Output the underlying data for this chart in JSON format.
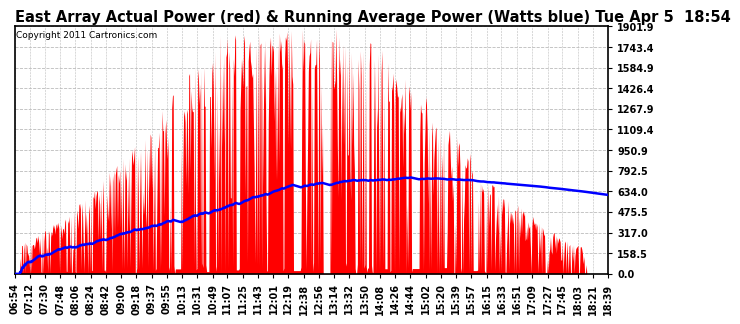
{
  "title": "East Array Actual Power (red) & Running Average Power (Watts blue) Tue Apr 5  18:54",
  "copyright": "Copyright 2011 Cartronics.com",
  "ylabel_ticks": [
    0.0,
    158.5,
    317.0,
    475.5,
    634.0,
    792.5,
    950.9,
    1109.4,
    1267.9,
    1426.4,
    1584.9,
    1743.4,
    1901.9
  ],
  "ymax": 1901.9,
  "ymin": 0.0,
  "background_color": "#ffffff",
  "plot_bg_color": "#ffffff",
  "grid_color": "#bbbbbb",
  "title_fontsize": 10.5,
  "copyright_fontsize": 6.5,
  "tick_fontsize": 7.0,
  "x_tick_labels": [
    "06:54",
    "07:12",
    "07:30",
    "07:48",
    "08:06",
    "08:24",
    "08:42",
    "09:00",
    "09:18",
    "09:37",
    "09:55",
    "10:13",
    "10:31",
    "10:49",
    "11:07",
    "11:25",
    "11:43",
    "12:01",
    "12:19",
    "12:38",
    "12:56",
    "13:14",
    "13:32",
    "13:50",
    "14:08",
    "14:26",
    "14:44",
    "15:02",
    "15:20",
    "15:39",
    "15:57",
    "16:15",
    "16:33",
    "16:51",
    "17:09",
    "17:27",
    "17:45",
    "18:03",
    "18:21",
    "18:39"
  ]
}
